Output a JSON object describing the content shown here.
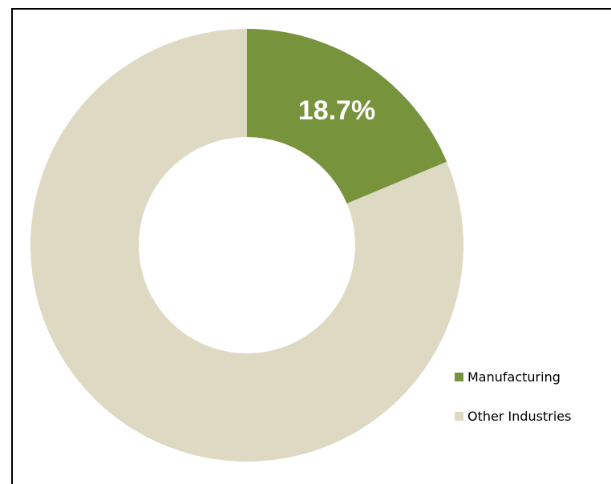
{
  "chart_data": {
    "type": "pie",
    "variant": "donut",
    "title": "",
    "slices": [
      {
        "label": "Manufacturing",
        "value": 18.7,
        "display": "18.7%",
        "color": "#77933c"
      },
      {
        "label": "Other Industries",
        "value": 81.3,
        "display": "",
        "color": "#ddd9c3"
      }
    ],
    "legend_position": "bottom-right"
  }
}
